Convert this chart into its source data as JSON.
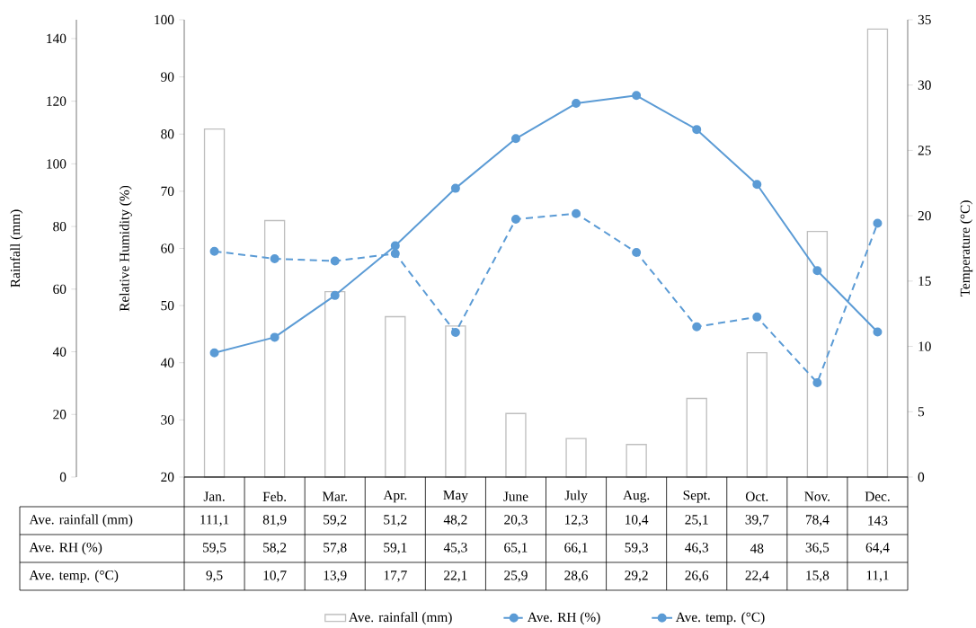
{
  "chart_data": {
    "type": "line",
    "categories": [
      "Jan.",
      "Feb.",
      "Mar.",
      "Apr.",
      "May",
      "June",
      "July",
      "Aug.",
      "Sept.",
      "Oct.",
      "Nov.",
      "Dec."
    ],
    "series": [
      {
        "name": "Ave. rainfall (mm)",
        "type": "bar",
        "axis": "y3",
        "color": "#bfbfbf",
        "values": [
          111.1,
          81.9,
          59.2,
          51.2,
          48.2,
          20.3,
          12.3,
          10.4,
          25.1,
          39.7,
          78.4,
          143
        ],
        "value_labels": [
          "111,1",
          "81,9",
          "59,2",
          "51,2",
          "48,2",
          "20,3",
          "12,3",
          "10,4",
          "25,1",
          "39,7",
          "78,4",
          "143"
        ]
      },
      {
        "name": "Ave. RH (%)",
        "axis": "y",
        "color": "#5b9bd5",
        "marker": "circle",
        "line_style": "dashed",
        "values": [
          59.5,
          58.2,
          57.8,
          59.1,
          45.3,
          65.1,
          66.1,
          59.3,
          46.3,
          48,
          36.5,
          64.4
        ],
        "value_labels": [
          "59,5",
          "58,2",
          "57,8",
          "59,1",
          "45,3",
          "65,1",
          "66,1",
          "59,3",
          "46,3",
          "48",
          "36,5",
          "64,4"
        ]
      },
      {
        "name": "Ave. temp. (°C)",
        "axis": "y2",
        "color": "#5b9bd5",
        "marker": "circle",
        "line_style": "solid",
        "values": [
          9.5,
          10.7,
          13.9,
          17.7,
          22.1,
          25.9,
          28.6,
          29.2,
          26.6,
          22.4,
          15.8,
          11.1
        ],
        "value_labels": [
          "9,5",
          "10,7",
          "13,9",
          "17,7",
          "22,1",
          "25,9",
          "28,6",
          "29,2",
          "26,6",
          "22,4",
          "15,8",
          "11,1"
        ]
      }
    ],
    "ylabel": "Relative Humidity (%)",
    "ylim": [
      20,
      100
    ],
    "yticks": [
      20,
      30,
      40,
      50,
      60,
      70,
      80,
      90,
      100
    ],
    "y2label": "Temperature (°C)",
    "y2lim": [
      0,
      35
    ],
    "y2ticks": [
      0,
      5,
      10,
      15,
      20,
      25,
      30,
      35
    ],
    "y3label": "Rainfall (mm)",
    "y3lim": [
      0,
      146
    ],
    "y3ticks": [
      0,
      20,
      40,
      60,
      80,
      100,
      120,
      140
    ],
    "legend": "bottom"
  }
}
